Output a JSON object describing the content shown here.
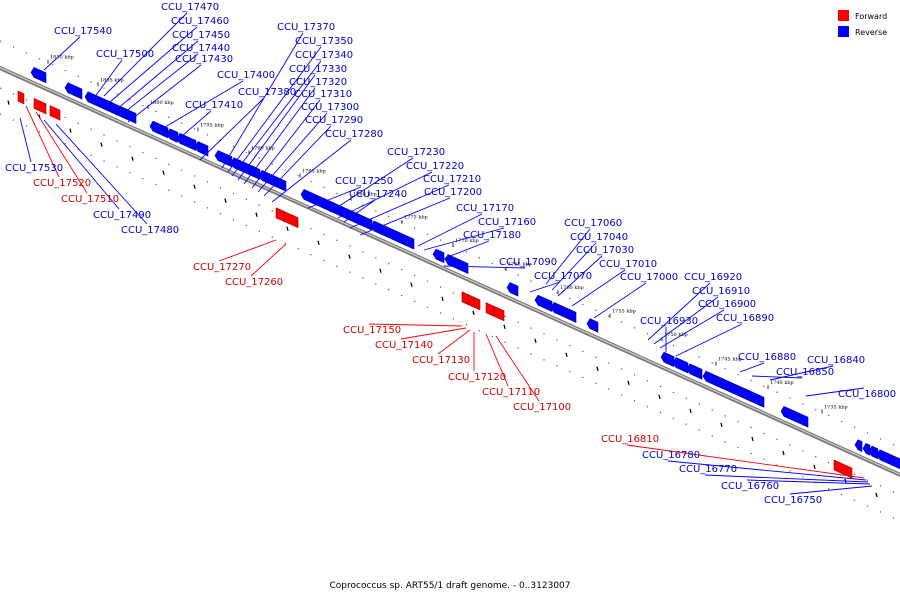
{
  "caption": "Coprococcus sp. ART55/1 draft genome. - 0..3123007",
  "colors": {
    "forward": "#ff0000",
    "reverse": "#0000ff",
    "forward_text": "#cc0000",
    "reverse_text": "#0000cc"
  },
  "legend": [
    {
      "label": "Forward",
      "strand": "forward"
    },
    {
      "label": "Reverse",
      "strand": "reverse"
    }
  ],
  "kbp_ticks": [
    "1810 kbp",
    "1805 kbp",
    "1800 kbp",
    "1795 kbp",
    "1790 kbp",
    "1785 kbp",
    "1780 kbp",
    "1775 kbp",
    "1770 kbp",
    "1765 kbp",
    "1760 kbp",
    "1755 kbp",
    "1750 kbp",
    "1745 kbp",
    "1740 kbp",
    "1735 kbp"
  ],
  "genes": [
    {
      "label": "CCU_17540",
      "strand": "reverse"
    },
    {
      "label": "CCU_17470",
      "strand": "reverse"
    },
    {
      "label": "CCU_17460",
      "strand": "reverse"
    },
    {
      "label": "CCU_17450",
      "strand": "reverse"
    },
    {
      "label": "CCU_17440",
      "strand": "reverse"
    },
    {
      "label": "CCU_17500",
      "strand": "reverse"
    },
    {
      "label": "CCU_17430",
      "strand": "reverse"
    },
    {
      "label": "CCU_17400",
      "strand": "reverse"
    },
    {
      "label": "CCU_17410",
      "strand": "reverse"
    },
    {
      "label": "CCU_17380",
      "strand": "reverse"
    },
    {
      "label": "CCU_17370",
      "strand": "reverse"
    },
    {
      "label": "CCU_17350",
      "strand": "reverse"
    },
    {
      "label": "CCU_17340",
      "strand": "reverse"
    },
    {
      "label": "CCU_17330",
      "strand": "reverse"
    },
    {
      "label": "CCU_17320",
      "strand": "reverse"
    },
    {
      "label": "CCU_17310",
      "strand": "reverse"
    },
    {
      "label": "CCU_17300",
      "strand": "reverse"
    },
    {
      "label": "CCU_17290",
      "strand": "reverse"
    },
    {
      "label": "CCU_17280",
      "strand": "reverse"
    },
    {
      "label": "CCU_17230",
      "strand": "reverse"
    },
    {
      "label": "CCU_17220",
      "strand": "reverse"
    },
    {
      "label": "CCU_17250",
      "strand": "reverse"
    },
    {
      "label": "CCU_17210",
      "strand": "reverse"
    },
    {
      "label": "CCU_17240",
      "strand": "reverse"
    },
    {
      "label": "CCU_17200",
      "strand": "reverse"
    },
    {
      "label": "CCU_17170",
      "strand": "reverse"
    },
    {
      "label": "CCU_17160",
      "strand": "reverse"
    },
    {
      "label": "CCU_17180",
      "strand": "reverse"
    },
    {
      "label": "CCU_17090",
      "strand": "reverse"
    },
    {
      "label": "CCU_17060",
      "strand": "reverse"
    },
    {
      "label": "CCU_17040",
      "strand": "reverse"
    },
    {
      "label": "CCU_17030",
      "strand": "reverse"
    },
    {
      "label": "CCU_17070",
      "strand": "reverse"
    },
    {
      "label": "CCU_17010",
      "strand": "reverse"
    },
    {
      "label": "CCU_17000",
      "strand": "reverse"
    },
    {
      "label": "CCU_16920",
      "strand": "reverse"
    },
    {
      "label": "CCU_16910",
      "strand": "reverse"
    },
    {
      "label": "CCU_16900",
      "strand": "reverse"
    },
    {
      "label": "CCU_16930",
      "strand": "reverse"
    },
    {
      "label": "CCU_16890",
      "strand": "reverse"
    },
    {
      "label": "CCU_16880",
      "strand": "reverse"
    },
    {
      "label": "CCU_16840",
      "strand": "reverse"
    },
    {
      "label": "CCU_16850",
      "strand": "reverse"
    },
    {
      "label": "CCU_16800",
      "strand": "reverse"
    },
    {
      "label": "CCU_17530",
      "strand": "reverse"
    },
    {
      "label": "CCU_17520",
      "strand": "forward"
    },
    {
      "label": "CCU_17510",
      "strand": "forward"
    },
    {
      "label": "CCU_17490",
      "strand": "reverse"
    },
    {
      "label": "CCU_17480",
      "strand": "reverse"
    },
    {
      "label": "CCU_17270",
      "strand": "forward"
    },
    {
      "label": "CCU_17260",
      "strand": "forward"
    },
    {
      "label": "CCU_17150",
      "strand": "forward"
    },
    {
      "label": "CCU_17140",
      "strand": "forward"
    },
    {
      "label": "CCU_17130",
      "strand": "forward"
    },
    {
      "label": "CCU_17120",
      "strand": "forward"
    },
    {
      "label": "CCU_17110",
      "strand": "forward"
    },
    {
      "label": "CCU_17100",
      "strand": "forward"
    },
    {
      "label": "CCU_16810",
      "strand": "forward"
    },
    {
      "label": "CCU_16780",
      "strand": "reverse"
    },
    {
      "label": "CCU_16770",
      "strand": "reverse"
    },
    {
      "label": "CCU_16760",
      "strand": "reverse"
    },
    {
      "label": "CCU_16750",
      "strand": "reverse"
    }
  ]
}
